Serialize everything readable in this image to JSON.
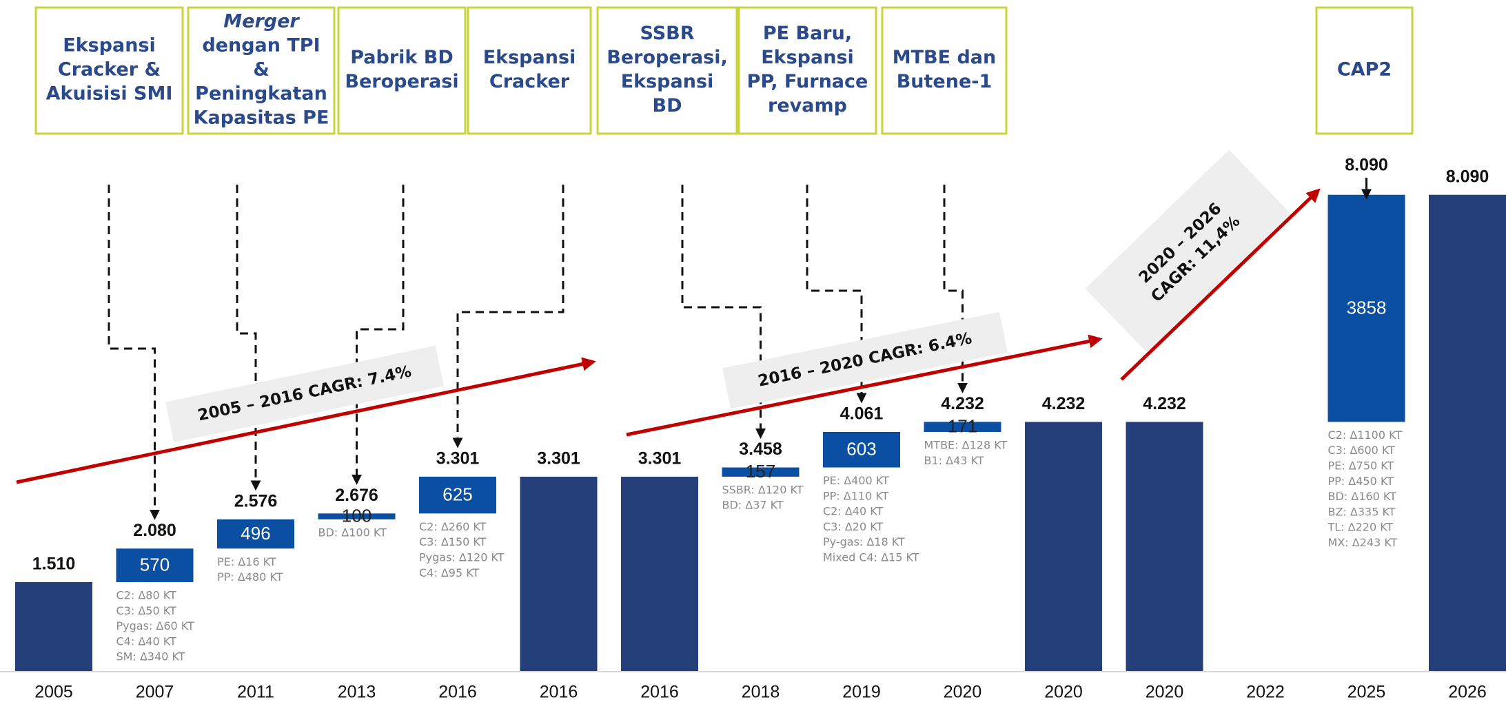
{
  "chart_data": {
    "type": "waterfall",
    "categories": [
      "2005",
      "2007",
      "2011",
      "2013",
      "2016",
      "2016",
      "2016",
      "2018",
      "2019",
      "2020",
      "2020",
      "2020",
      "2022",
      "2025",
      "2026"
    ],
    "values": [
      1510,
      570,
      496,
      100,
      625,
      3301,
      3301,
      157,
      603,
      171,
      4232,
      4232,
      null,
      3858,
      8090
    ],
    "measure": [
      "total",
      "relative",
      "relative",
      "relative",
      "relative",
      "total",
      "total",
      "relative",
      "relative",
      "relative",
      "total",
      "total",
      null,
      "relative",
      "total"
    ],
    "top_labels": [
      "1.510",
      "2.080",
      "2.576",
      "2.676",
      "3.301",
      "3.301",
      "3.301",
      "3.458",
      "4.061",
      "4.232",
      "4.232",
      "4.232",
      null,
      "8.090",
      "8.090"
    ],
    "total_color": "#243f7a",
    "relative_color": "#0b4fa3",
    "ylim": [
      0,
      9000
    ],
    "notes": [
      null,
      [
        "C2: Δ80 KT",
        "C3: Δ50 KT",
        "Pygas: Δ60 KT",
        "C4: Δ40 KT",
        "SM: Δ340 KT"
      ],
      [
        "PE: Δ16 KT",
        "PP: Δ480 KT"
      ],
      [
        "BD: Δ100 KT"
      ],
      [
        "C2: Δ260 KT",
        "C3: Δ150 KT",
        "Pygas: Δ120 KT",
        "C4: Δ95 KT"
      ],
      null,
      null,
      [
        "SSBR: Δ120 KT",
        "BD: Δ37 KT"
      ],
      [
        "PE: Δ400 KT",
        "PP: Δ110 KT",
        "C2: Δ40 KT",
        "C3: Δ20 KT",
        "Py-gas: Δ18 KT",
        "Mixed C4: Δ15 KT"
      ],
      [
        "MTBE: Δ128 KT",
        "B1: Δ43 KT"
      ],
      null,
      null,
      null,
      [
        "C2: Δ1100 KT",
        "C3: Δ600 KT",
        "PE: Δ750 KT",
        "PP: Δ450 KT",
        "BD: Δ160 KT",
        "BZ: Δ335 KT",
        "TL: Δ220 KT",
        "MX: Δ243 KT"
      ],
      null
    ],
    "events": [
      [
        "Ekspansi",
        "Cracker &",
        "Akuisisi SMI"
      ],
      [
        "Merger",
        "dengan TPI",
        "&",
        "Peningkatan",
        "Kapasitas PE"
      ],
      [
        "Pabrik BD",
        "Beroperasi"
      ],
      [
        "Ekspansi",
        "Cracker"
      ],
      [
        "SSBR",
        "Beroperasi,",
        "Ekspansi",
        "BD"
      ],
      [
        "PE Baru,",
        "Ekspansi",
        "PP, Furnace",
        "revamp"
      ],
      [
        "MTBE dan",
        "Butene-1"
      ],
      [
        "CAP2"
      ]
    ],
    "annotations": [
      [
        "2005 – 2016 CAGR: 7.4%"
      ],
      [
        "2016 – 2020 CAGR: 6.4%"
      ],
      [
        "2020 – 2026",
        "CAGR: 11,4%"
      ]
    ]
  }
}
